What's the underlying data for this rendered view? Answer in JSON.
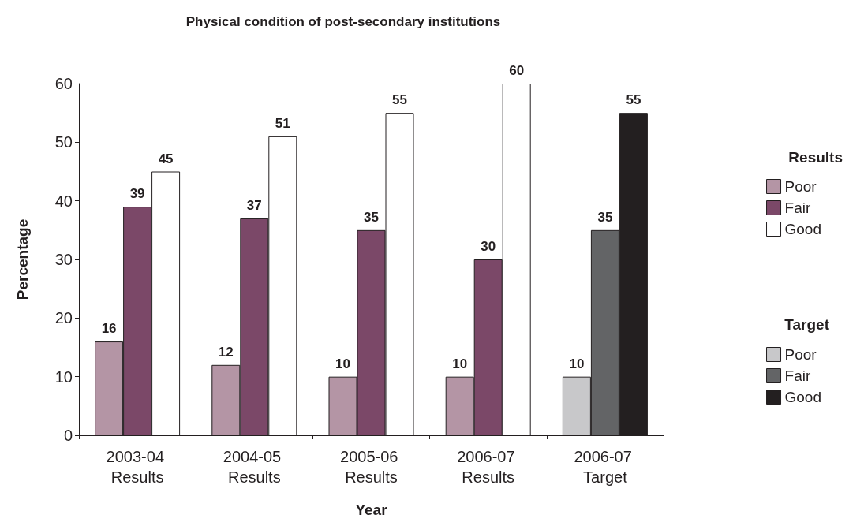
{
  "chart_data": {
    "type": "bar",
    "title": "Physical condition of post-secondary institutions",
    "xlabel": "Year",
    "ylabel": "Percentage",
    "legend_title": "Results",
    "annotations": [
      "Target"
    ],
    "categories": [
      "2003-04 Results",
      "2004-05 Results",
      "2005-06 Results",
      "2006-07 Results",
      "2006-07 Target"
    ],
    "series": [
      {
        "name": "Poor",
        "color": "#b495a5",
        "values": [
          16,
          12,
          10,
          10,
          null
        ]
      },
      {
        "name": "Fair",
        "color": "#7b4868",
        "values": [
          39,
          37,
          35,
          30,
          null
        ]
      },
      {
        "name": "Good",
        "color": "#ffffff",
        "values": [
          45,
          51,
          55,
          60,
          null
        ]
      },
      {
        "name": "Poor",
        "color": "#c8c8ca",
        "values": [
          null,
          null,
          null,
          null,
          10
        ]
      },
      {
        "name": "Fair",
        "color": "#636466",
        "values": [
          null,
          null,
          null,
          null,
          35
        ]
      },
      {
        "name": "Good",
        "color": "#231f20",
        "values": [
          null,
          null,
          null,
          null,
          55
        ]
      }
    ],
    "ylim": [
      0,
      60
    ],
    "yticks": [
      0,
      10,
      20,
      30,
      40,
      50,
      60
    ],
    "grid": false,
    "legend": "right",
    "data_labels": true
  }
}
